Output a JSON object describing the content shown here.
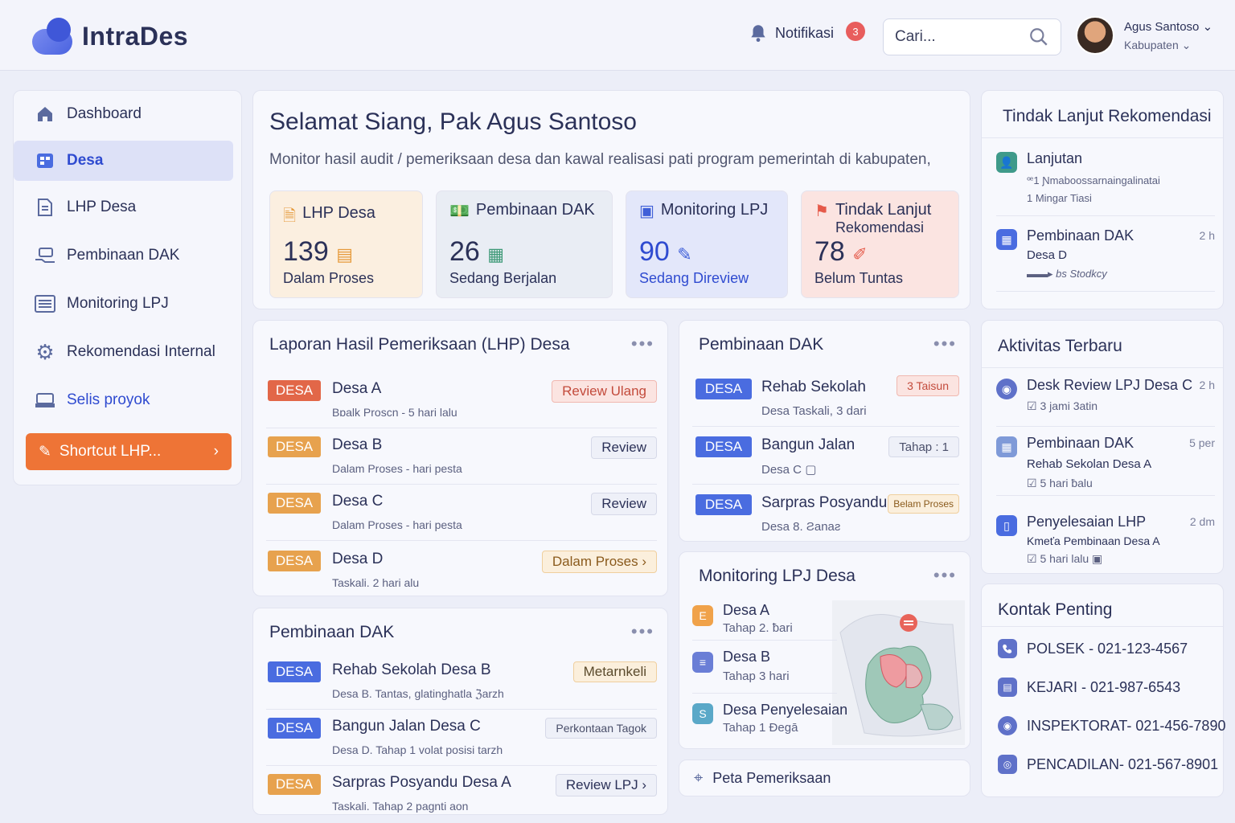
{
  "app": {
    "name": "IntraDes"
  },
  "header": {
    "notif_label": "Notifikasi",
    "notif_count": "3",
    "search_placeholder": "Cari...",
    "user_name": "Agus Santoso",
    "user_role": "Kabupaten"
  },
  "sidebar": {
    "items": [
      {
        "label": "Dashboard",
        "icon": "home-icon"
      },
      {
        "label": "Desa",
        "icon": "grid-icon"
      },
      {
        "label": "LHP Desa",
        "icon": "document-icon"
      },
      {
        "label": "Pembinaan DAK",
        "icon": "hand-money-icon"
      },
      {
        "label": "Monitoring LPJ",
        "icon": "list-icon"
      },
      {
        "label": "Rekomendasi Internal",
        "icon": "gear-icon"
      },
      {
        "label": "Selis proyok",
        "icon": "inbox-icon"
      }
    ],
    "shortcut_label": "Shortcut LHP..."
  },
  "hero": {
    "greeting": "Selamat Siang, Pak Agus Santoso",
    "subtitle": "Monitor hasil audit / pemeriksaan desa dan kawal realisasi pati program pemerintah di kabupaten,",
    "stats": [
      {
        "title": "LHP Desa",
        "value": "139",
        "sub": "Dalam Proses",
        "bg": "#fbefe0",
        "accent": "#e69a3b"
      },
      {
        "title": "Pembinaan DAK",
        "value": "26",
        "sub": "Sedang Berjalan",
        "bg": "#e9edf4",
        "accent": "#3f9a78"
      },
      {
        "title": "Monitoring LPJ",
        "value": "90",
        "sub": "Sedang Direview",
        "bg": "#e3e7fa",
        "accent": "#3f5fd8"
      },
      {
        "title": "Tindak Lanjut",
        "title2": "Rekomendasi",
        "value": "78",
        "sub": "Belum Tuntas",
        "bg": "#fbe4e1",
        "accent": "#e55a4a"
      }
    ]
  },
  "lhp": {
    "title": "Laporan Hasil Pemeriksaan (LHP) Desa",
    "rows": [
      {
        "tag": "DESA",
        "name": "Desa A",
        "sub": "Bɒalk Proscn - 5 hari lalu",
        "status": "Review Ulang"
      },
      {
        "tag": "DESA",
        "name": "Desa B",
        "sub": "Dalam Proses - hari pesta",
        "status": "Review"
      },
      {
        "tag": "DESA",
        "name": "Desa C",
        "sub": "Dalam Proses - hari pesta",
        "status": "Review"
      },
      {
        "tag": "DESA",
        "name": "Desa D",
        "sub": "Taskali. 2 hari alu",
        "status": "Dalam Proses ›"
      }
    ]
  },
  "dak_left": {
    "title": "Pembinaan DAK",
    "rows": [
      {
        "tag": "DESA",
        "name": "Rehab Sekolah Desa B",
        "sub": "Desa B. Tantas, glatinghatla ℨarzh",
        "status": "Metarnkeli"
      },
      {
        "tag": "DESA",
        "name": "Bangun Jalan Desa C",
        "sub": "Desa D. Tahap 1 volat posisi tarzh",
        "status": "Perkontaan Tagok"
      },
      {
        "tag": "DESA",
        "name": "Sarpras Posyandu Desa A",
        "sub": "Taskali. Tahap 2 pagnti aon",
        "status": "Review LPJ ›"
      }
    ]
  },
  "dak_mid": {
    "title": "Pembinaan DAK",
    "rows": [
      {
        "tag": "DESA",
        "name": "Rehab Sekolah",
        "sub": "Desa Taskali, 3 dari",
        "status": "3 Taisun"
      },
      {
        "tag": "DESA",
        "name": "Bangun Jalan",
        "sub": "Desa C",
        "status": "Tahap : 1"
      },
      {
        "tag": "DESA",
        "name": "Sarpras Posyandu",
        "sub": "Desa 8. Ƨanaƨ",
        "status": "Belam Proses"
      }
    ]
  },
  "lpj": {
    "title": "Monitoring LPJ Desa",
    "rows": [
      {
        "icon": "E",
        "name": "Desa A",
        "sub": "Tahap 2. ƀari"
      },
      {
        "icon": "≡",
        "name": "Desa B",
        "sub": "Tahap 3 hari"
      },
      {
        "icon": "S",
        "name": "Desa Penyelesaian",
        "sub": "Tahap 1 Ɖegā"
      }
    ]
  },
  "peta": {
    "label": "Peta Pemeriksaan"
  },
  "tindak": {
    "title": "Tindak Lanjut Rekomendasi",
    "items": [
      {
        "title": "Lanjutan",
        "sub1": "ꟹ1 Ɲmaboossarnaingalinatai",
        "sub2": "1 Mingar Tiasi",
        "time": ""
      },
      {
        "title": "Pembinaan DAK",
        "sub1": "Desa D",
        "sub2": "bs Stodkcy",
        "time": "2 h"
      }
    ]
  },
  "aktivitas": {
    "title": "Aktivitas Terbaru",
    "items": [
      {
        "title": "Desk Review LPJ Desa C",
        "sub1": "",
        "sub2": "3 jami 3atin",
        "time": "2 h"
      },
      {
        "title": "Pembinaan DAK",
        "sub1": "Rehab Sekolan Desa A",
        "sub2": "5 hari ƀalu",
        "time": "5 per"
      },
      {
        "title": "Penyelesaian LHP",
        "sub1": "Kmeťa Pembinaan Desa A",
        "sub2": "5 hari lalu",
        "time": "2 dm"
      }
    ]
  },
  "kontak": {
    "title": "Kontak Penting",
    "items": [
      {
        "name": "POLSEK",
        "phone": "- 021-123-4567"
      },
      {
        "name": "KEJARI",
        "phone": "- 021-987-6543"
      },
      {
        "name": "INSPEKTORAT",
        "phone": "- 021-456-7890"
      },
      {
        "name": "PENCADILAN",
        "phone": "- 021-567-8901"
      }
    ]
  }
}
